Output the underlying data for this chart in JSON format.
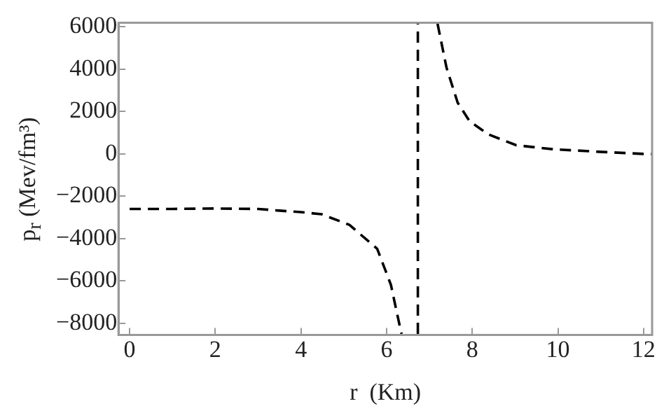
{
  "chart_data": {
    "type": "line",
    "xlabel": "r  (Km)",
    "ylabel": "p$_{r}$  (Mev/fm³)",
    "series": [
      {
        "color": "#000000",
        "x": [
          0,
          1,
          2,
          3,
          3.5,
          4,
          4.48,
          5.13,
          5.78,
          6.1,
          6.32,
          6.35,
          null,
          6.73,
          6.73,
          null,
          7.19,
          7.4,
          7.66,
          7.94,
          8.38,
          9.03,
          9.89,
          10.97,
          12,
          12.2
        ],
        "values": [
          -2600,
          -2600,
          -2580,
          -2600,
          -2680,
          -2750,
          -2850,
          -3350,
          -4480,
          -6180,
          -8250,
          -8500,
          null,
          -8500,
          6150,
          null,
          6150,
          4070,
          2420,
          1540,
          920,
          410,
          220,
          100,
          0,
          -10
        ]
      }
    ],
    "xlim": [
      -0.26,
      12.2
    ],
    "xticks": [
      0,
      2,
      4,
      6,
      8,
      10,
      12
    ],
    "ylim": [
      -8550,
      6200
    ],
    "yticks": [
      -8000,
      -6000,
      -4000,
      -2000,
      0,
      2000,
      4000,
      6000
    ],
    "grid": false,
    "legend": false,
    "marker": "none",
    "line_style": "dashed"
  }
}
